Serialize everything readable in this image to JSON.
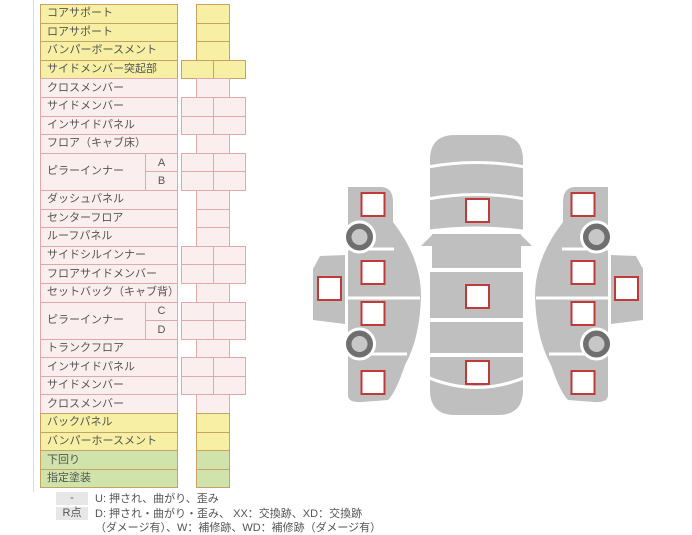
{
  "parts_table": {
    "rows": [
      {
        "label": "コアサポート",
        "color": "yellow",
        "cells": 1
      },
      {
        "label": "ロアサポート",
        "color": "yellow",
        "cells": 1
      },
      {
        "label": "バンパーボースメント",
        "color": "yellow",
        "cells": 1
      },
      {
        "label": "サイドメンバー突起部",
        "color": "yellow",
        "cells": 2
      },
      {
        "label": "クロスメンバー",
        "color": "pink",
        "cells": 1
      },
      {
        "label": "サイドメンバー",
        "color": "pink",
        "cells": 2
      },
      {
        "label": "インサイドパネル",
        "color": "pink",
        "cells": 2
      },
      {
        "label": "フロア（キャブ床）",
        "color": "pink",
        "cells": 1
      },
      {
        "label": "ピラーインナー",
        "color": "pink",
        "cells": 2,
        "sub": [
          "A",
          "B"
        ]
      },
      {
        "label": "ダッシュパネル",
        "color": "pink",
        "cells": 1
      },
      {
        "label": "センターフロア",
        "color": "pink",
        "cells": 1
      },
      {
        "label": "ルーフパネル",
        "color": "pink",
        "cells": 1
      },
      {
        "label": "サイドシルインナー",
        "color": "pink",
        "cells": 2
      },
      {
        "label": "フロアサイドメンバー",
        "color": "pink",
        "cells": 2
      },
      {
        "label": "セットバック（キャブ背）",
        "color": "pink",
        "cells": 1
      },
      {
        "label": "ピラーインナー",
        "color": "pink",
        "cells": 2,
        "sub": [
          "C",
          "D"
        ]
      },
      {
        "label": "トランクフロア",
        "color": "pink",
        "cells": 1
      },
      {
        "label": "インサイドパネル",
        "color": "pink",
        "cells": 2
      },
      {
        "label": "サイドメンバー",
        "color": "pink",
        "cells": 2
      },
      {
        "label": "クロスメンバー",
        "color": "pink",
        "cells": 1
      },
      {
        "label": "バックパネル",
        "color": "yellow",
        "cells": 1
      },
      {
        "label": "バンパーホースメント",
        "color": "yellow",
        "cells": 1
      },
      {
        "label": "下回り",
        "color": "green",
        "cells": 1
      },
      {
        "label": "指定塗装",
        "color": "green",
        "cells": 1
      }
    ],
    "cell_value_empty": ""
  },
  "legend": {
    "items": [
      {
        "code": "-",
        "text": "U: 押され、曲がり、歪み"
      },
      {
        "code": "R点",
        "text": "D: 押され・曲がり・歪み、 XX：交換跡、XD：交換跡\n（ダメージ有）、W：補修跡、WD：補修跡（ダメージ有）"
      }
    ]
  },
  "diagram": {
    "views": [
      "left-side-view",
      "top-view",
      "right-side-view"
    ],
    "markers": [
      {
        "id": "top-view-front",
        "value": ""
      },
      {
        "id": "top-view-center",
        "value": ""
      },
      {
        "id": "top-view-rear",
        "value": ""
      },
      {
        "id": "left-side-1",
        "value": ""
      },
      {
        "id": "left-side-2",
        "value": ""
      },
      {
        "id": "left-side-3",
        "value": ""
      },
      {
        "id": "left-side-4",
        "value": ""
      },
      {
        "id": "left-side-outer",
        "value": ""
      },
      {
        "id": "right-side-1",
        "value": ""
      },
      {
        "id": "right-side-2",
        "value": ""
      },
      {
        "id": "right-side-3",
        "value": ""
      },
      {
        "id": "right-side-4",
        "value": ""
      },
      {
        "id": "right-side-outer",
        "value": ""
      }
    ]
  },
  "colors": {
    "yellow_bg": "#f6efa4",
    "yellow_border": "#c8a263",
    "pink_bg": "#fbeeee",
    "pink_border": "#e0a9a9",
    "green_bg": "#cfe3ab",
    "text": "#555555",
    "car_body": "#bfbfbf",
    "wheel_ring": "#6f6f6f",
    "wheel_hub": "#c7c7c7",
    "marker_border": "#c03a3a",
    "legend_badge_bg": "#e7e7e7"
  }
}
